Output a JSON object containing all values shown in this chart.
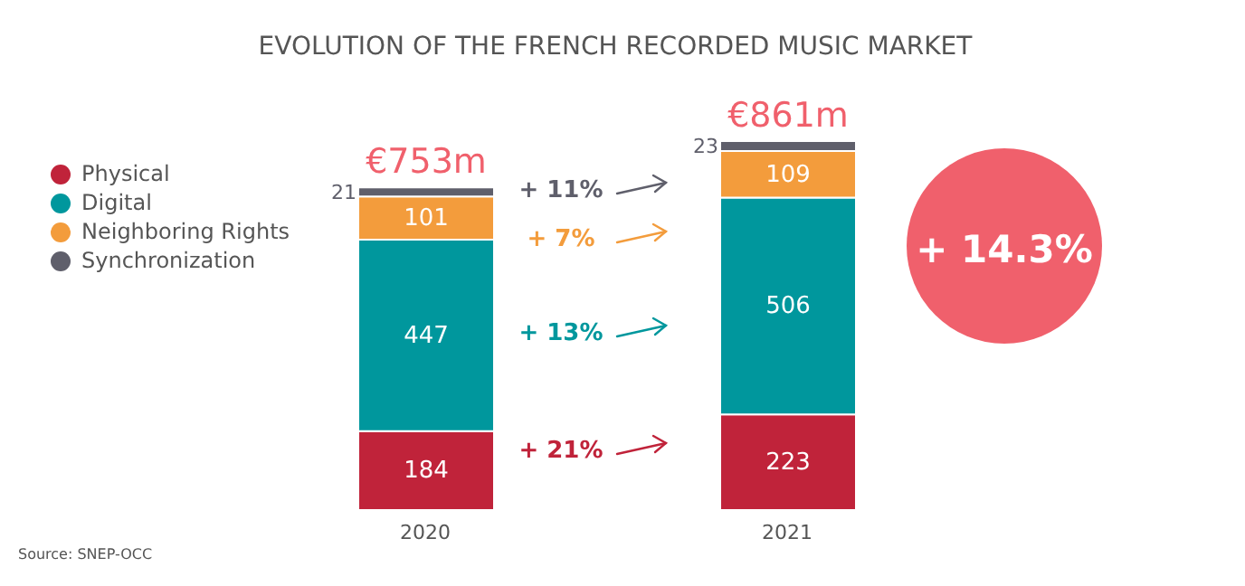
{
  "chart_data": {
    "type": "bar",
    "title": "EVOLUTION OF THE FRENCH RECORDED MUSIC MARKET",
    "categories": [
      "2020",
      "2021"
    ],
    "stacked": true,
    "series": [
      {
        "name": "Physical",
        "color": "#c0233a",
        "values": [
          184,
          223
        ]
      },
      {
        "name": "Digital",
        "color": "#00979d",
        "values": [
          447,
          506
        ]
      },
      {
        "name": "Neighboring Rights",
        "color": "#f39c3c",
        "values": [
          101,
          109
        ]
      },
      {
        "name": "Synchronization",
        "color": "#5f5f6b",
        "values": [
          21,
          23
        ]
      }
    ],
    "data_labels": true,
    "totals": [
      "€753m",
      "€861m"
    ],
    "legend": "top left",
    "annotations": [
      "+ 11%",
      "+ 7%",
      "+ 13%",
      "+ 21%",
      "+ 14.3%",
      "Source: SNEP-OCC"
    ]
  }
}
